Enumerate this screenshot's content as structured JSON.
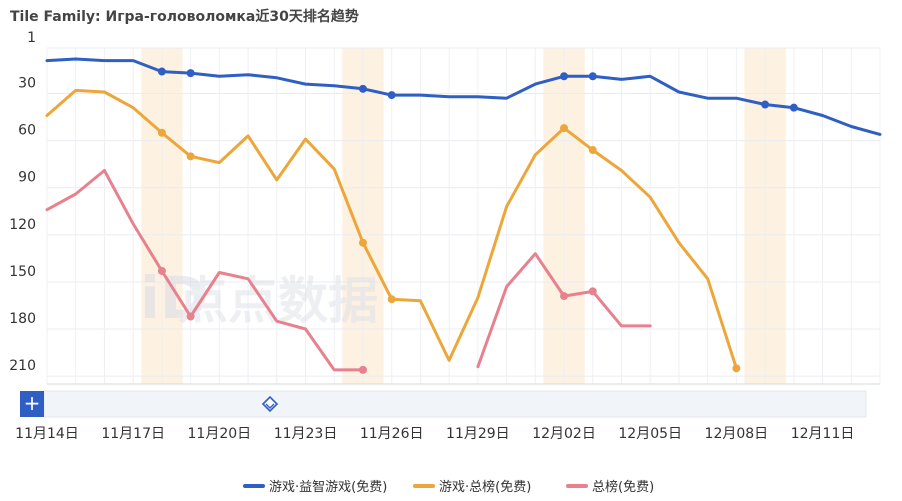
{
  "chart_data": {
    "type": "line",
    "title": "Tile Family: Игра-головоломка近30天排名趋势",
    "y_inverted": true,
    "ylim": [
      1,
      215
    ],
    "y_ticks": [
      1,
      30,
      60,
      90,
      120,
      150,
      180,
      210
    ],
    "x": [
      "11月14日",
      "11月15日",
      "11月16日",
      "11月17日",
      "11月18日",
      "11月19日",
      "11月20日",
      "11月21日",
      "11月22日",
      "11月23日",
      "11月24日",
      "11月25日",
      "11月26日",
      "11月27日",
      "11月28日",
      "11月29日",
      "11月30日",
      "12月01日",
      "12月02日",
      "12月03日",
      "12月04日",
      "12月05日",
      "12月06日",
      "12月07日",
      "12月08日",
      "12月09日",
      "12月10日",
      "12月11日",
      "12月12日",
      "12月13日"
    ],
    "x_tick_labels": [
      "11月14日",
      "11月17日",
      "11月20日",
      "11月23日",
      "11月26日",
      "11月29日",
      "12月02日",
      "12月05日",
      "12月08日",
      "12月11日"
    ],
    "highlight_days": [
      "11月18日",
      "11月25日",
      "12月02日",
      "12月09日"
    ],
    "grid": true,
    "legend_position": "bottom",
    "series": [
      {
        "name": "游戏·益智游戏(免费)",
        "color": "#2f5fc4",
        "values": [
          9,
          8,
          9,
          9,
          16,
          17,
          19,
          18,
          20,
          24,
          25,
          27,
          31,
          31,
          32,
          32,
          33,
          24,
          19,
          19,
          21,
          19,
          29,
          33,
          33,
          37,
          39,
          44,
          51,
          56
        ],
        "markers": [
          4,
          5,
          11,
          12,
          18,
          19,
          25,
          26
        ]
      },
      {
        "name": "游戏·总榜(免费)",
        "color": "#eda63a",
        "values": [
          44,
          28,
          29,
          39,
          55,
          70,
          74,
          57,
          85,
          59,
          78,
          125,
          161,
          162,
          200,
          160,
          102,
          69,
          52,
          66,
          79,
          96,
          125,
          148,
          205,
          null,
          null,
          null,
          null,
          null
        ],
        "markers": [
          4,
          5,
          11,
          12,
          18,
          19,
          24
        ]
      },
      {
        "name": "总榜(免费)",
        "color": "#e8818e",
        "values": [
          104,
          94,
          79,
          113,
          143,
          172,
          144,
          148,
          175,
          180,
          206,
          206,
          null,
          null,
          null,
          204,
          153,
          132,
          159,
          156,
          178,
          178,
          null,
          null,
          null,
          null,
          null,
          null,
          null,
          null
        ],
        "markers": [
          4,
          5,
          11,
          18,
          19
        ]
      }
    ]
  },
  "controls": {
    "add_label": "+"
  }
}
